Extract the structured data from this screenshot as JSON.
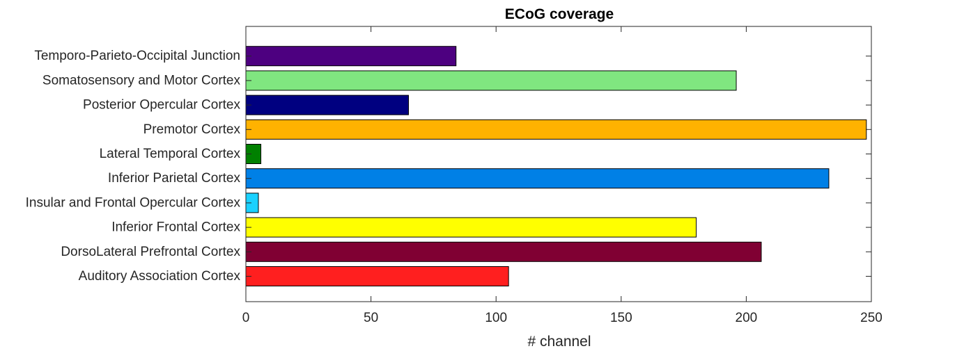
{
  "chart_data": {
    "type": "bar",
    "orientation": "horizontal",
    "title": "ECoG coverage",
    "xlabel": "# channel",
    "ylabel": "",
    "xlim": [
      0,
      250
    ],
    "xticks": [
      0,
      50,
      100,
      150,
      200,
      250
    ],
    "grid": false,
    "categories": [
      "Auditory Association Cortex",
      "DorsoLateral Prefrontal Cortex",
      "Inferior Frontal Cortex",
      "Insular and Frontal Opercular Cortex",
      "Inferior Parietal Cortex",
      "Lateral Temporal Cortex",
      "Premotor Cortex",
      "Posterior Opercular Cortex",
      "Somatosensory and Motor Cortex",
      "Temporo-Parieto-Occipital Junction"
    ],
    "values": [
      105,
      206,
      180,
      5,
      233,
      6,
      248,
      65,
      196,
      84
    ],
    "colors": [
      "#ff1f1f",
      "#800033",
      "#ffff00",
      "#1ad1ff",
      "#0080e6",
      "#008000",
      "#ffb200",
      "#000080",
      "#80e680",
      "#4d0080"
    ]
  }
}
